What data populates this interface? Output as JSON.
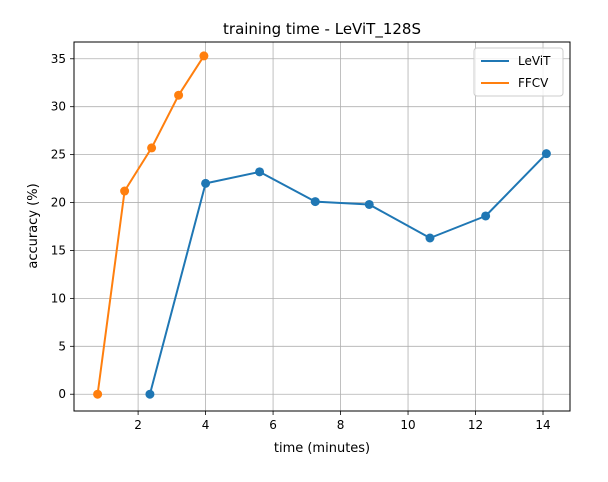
{
  "chart_data": {
    "type": "line",
    "title": "training time - LeViT_128S",
    "xlabel": "time (minutes)",
    "ylabel": "accuracy (%)",
    "xlim": [
      0.1,
      14.8
    ],
    "ylim": [
      -1.75,
      36.75
    ],
    "xticks": [
      2,
      4,
      6,
      8,
      10,
      12,
      14
    ],
    "yticks": [
      0,
      5,
      10,
      15,
      20,
      25,
      30,
      35
    ],
    "grid": true,
    "legend_position": "top-right",
    "series": [
      {
        "name": "LeViT",
        "color": "#1f77b4",
        "x": [
          2.35,
          4.0,
          5.6,
          7.25,
          8.85,
          10.65,
          12.3,
          14.1
        ],
        "y": [
          0.0,
          22.0,
          23.2,
          20.1,
          19.8,
          16.3,
          18.6,
          25.1
        ]
      },
      {
        "name": "FFCV",
        "color": "#ff7f0e",
        "x": [
          0.8,
          1.6,
          2.4,
          3.2,
          3.95
        ],
        "y": [
          0.0,
          21.2,
          25.7,
          31.2,
          35.3
        ]
      }
    ]
  }
}
